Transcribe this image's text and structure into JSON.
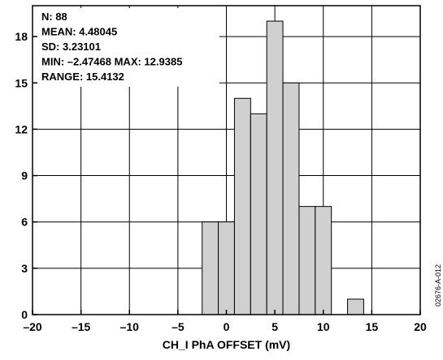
{
  "chart_data": {
    "type": "bar",
    "subtype": "histogram",
    "xlabel": "CH_I  PhA  OFFSET (mV)",
    "ylabel": "",
    "xlim": [
      -20,
      20
    ],
    "ylim": [
      0,
      20
    ],
    "xticks": [
      -20,
      -15,
      -10,
      -5,
      0,
      5,
      10,
      15,
      20
    ],
    "yticks": [
      0,
      3,
      6,
      9,
      12,
      15,
      18
    ],
    "xtick_labels": [
      "–20",
      "–15",
      "–10",
      "–5",
      "0",
      "5",
      "10",
      "15",
      "20"
    ],
    "ytick_labels": [
      "0",
      "3",
      "6",
      "9",
      "12",
      "15",
      "18"
    ],
    "grid": true,
    "bar_color": "#d0d0d0",
    "bins": [
      {
        "x0": -2.5,
        "x1": -0.833,
        "count": 6
      },
      {
        "x0": -0.833,
        "x1": 0.833,
        "count": 6
      },
      {
        "x0": 0.833,
        "x1": 2.5,
        "count": 14
      },
      {
        "x0": 2.5,
        "x1": 4.167,
        "count": 13
      },
      {
        "x0": 4.167,
        "x1": 5.833,
        "count": 19
      },
      {
        "x0": 5.833,
        "x1": 7.5,
        "count": 15
      },
      {
        "x0": 7.5,
        "x1": 9.167,
        "count": 7
      },
      {
        "x0": 9.167,
        "x1": 10.833,
        "count": 7
      },
      {
        "x0": 10.833,
        "x1": 12.5,
        "count": 0
      },
      {
        "x0": 12.5,
        "x1": 14.167,
        "count": 1
      }
    ],
    "stats": [
      "N: 88",
      "MEAN:  4.48045",
      "SD:  3.23101",
      "MIN:  –2.47468  MAX: 12.9385",
      "RANGE:  15.4132"
    ],
    "figure_id": "02676-A-012"
  }
}
